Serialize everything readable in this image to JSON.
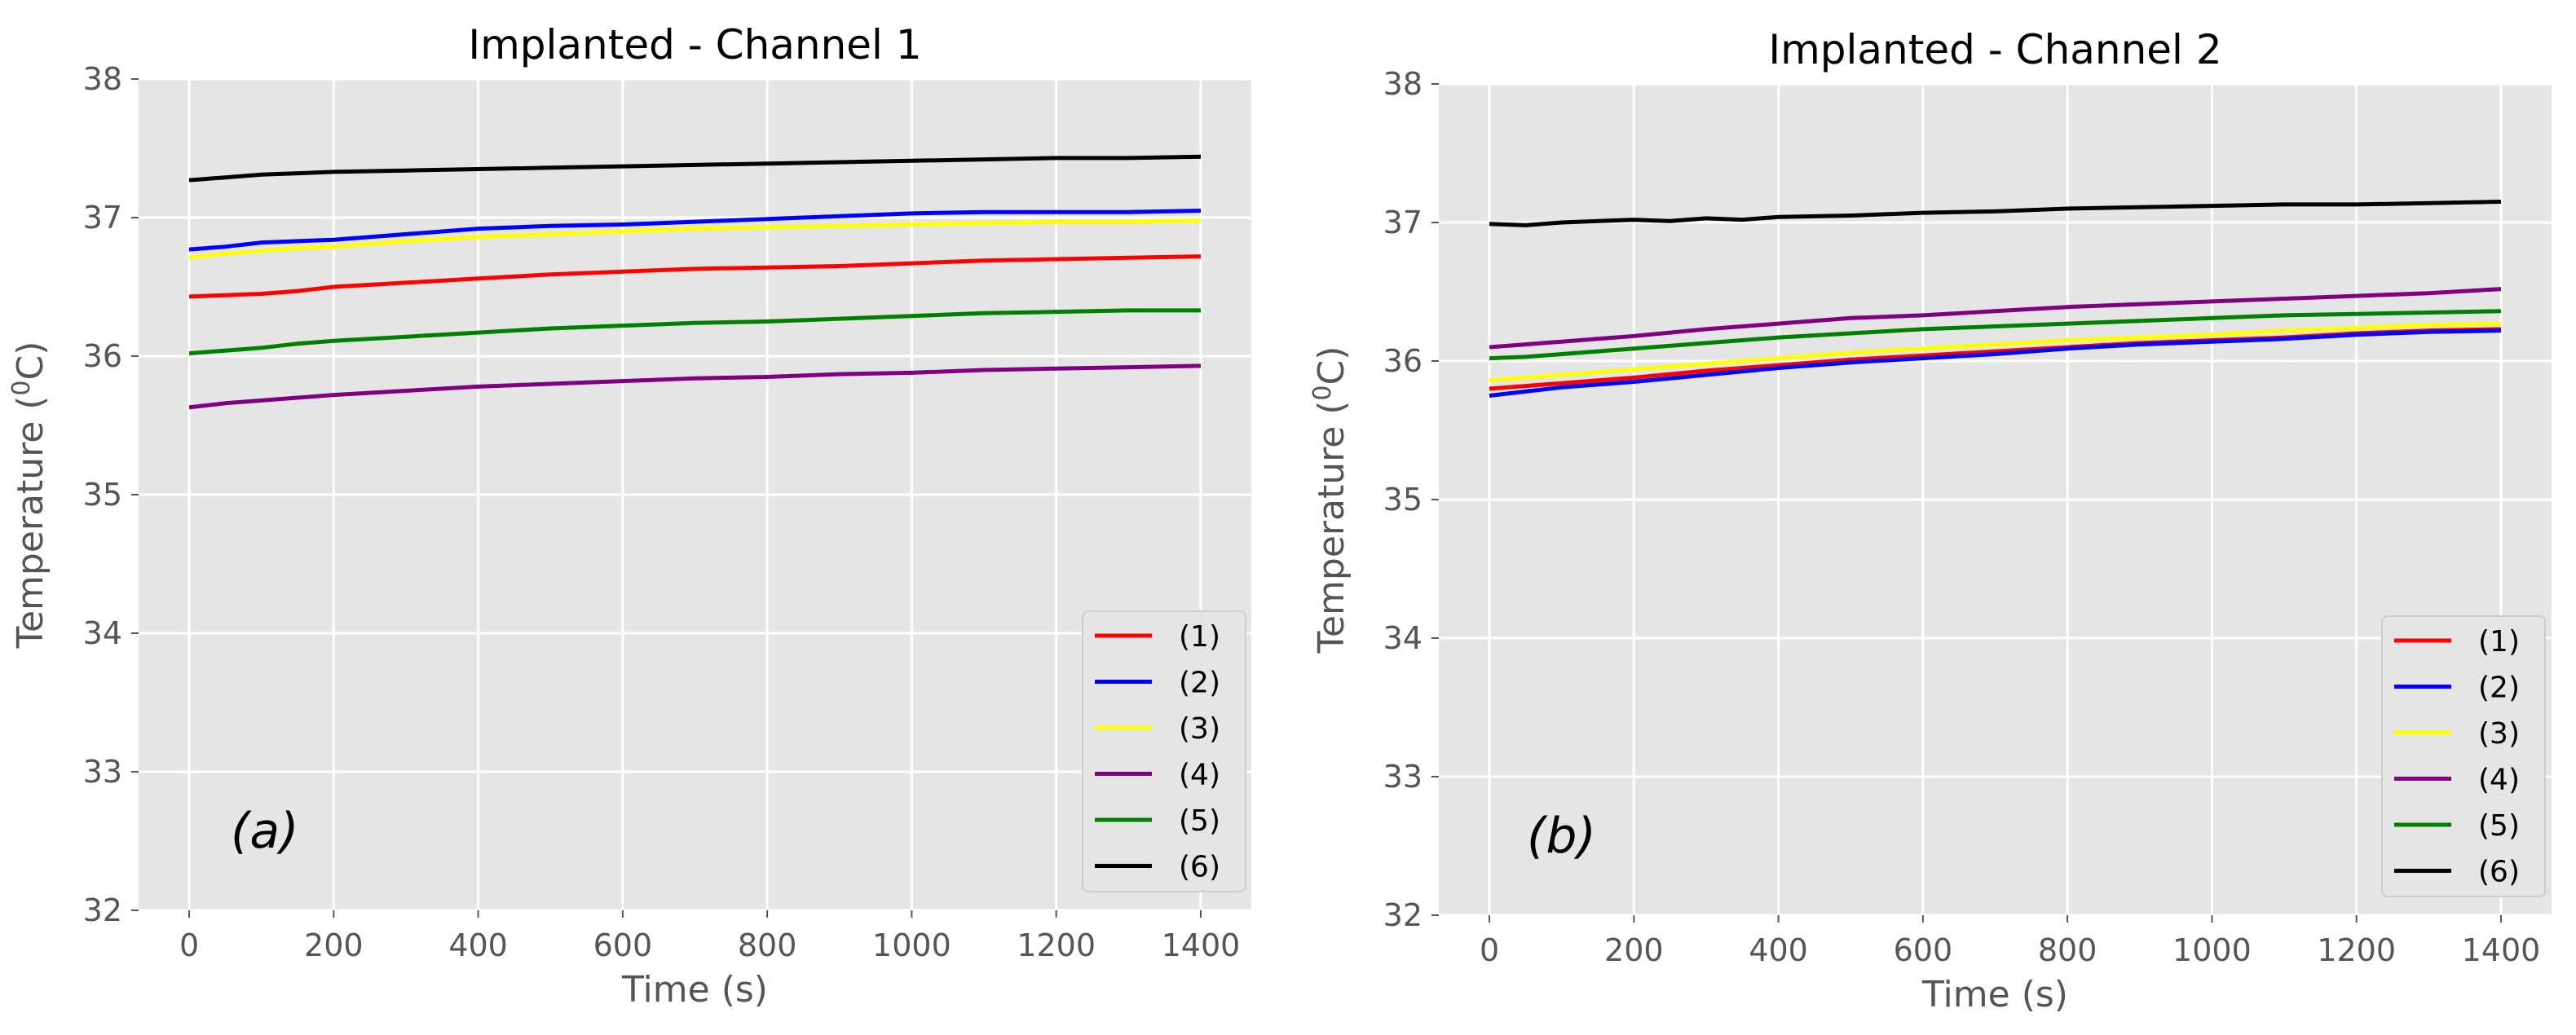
{
  "chart_data": [
    {
      "type": "line",
      "title": "Implanted - Channel 1",
      "xlabel": "Time (s)",
      "ylabel_prefix": "Temperature (",
      "ylabel_sup": "0",
      "ylabel_suffix": "C)",
      "xlim": [
        -70,
        1470
      ],
      "ylim": [
        32,
        38
      ],
      "xticks": [
        0,
        200,
        400,
        600,
        800,
        1000,
        1200,
        1400
      ],
      "yticks": [
        32,
        33,
        34,
        35,
        36,
        37,
        38
      ],
      "grid": true,
      "legend_position": "lower-right",
      "panel_label": "(a)",
      "series": [
        {
          "name": "(1)",
          "color": "#ff0000",
          "x": [
            0,
            50,
            100,
            150,
            200,
            300,
            400,
            500,
            600,
            700,
            800,
            900,
            1000,
            1100,
            1200,
            1300,
            1400
          ],
          "y": [
            36.43,
            36.44,
            36.45,
            36.47,
            36.5,
            36.53,
            36.56,
            36.59,
            36.61,
            36.63,
            36.64,
            36.65,
            36.67,
            36.69,
            36.7,
            36.71,
            36.72
          ]
        },
        {
          "name": "(2)",
          "color": "#0000ff",
          "x": [
            0,
            50,
            100,
            150,
            200,
            300,
            400,
            500,
            600,
            700,
            800,
            900,
            1000,
            1100,
            1200,
            1300,
            1400
          ],
          "y": [
            36.77,
            36.79,
            36.82,
            36.83,
            36.84,
            36.88,
            36.92,
            36.94,
            36.95,
            36.97,
            36.99,
            37.01,
            37.03,
            37.04,
            37.04,
            37.04,
            37.05
          ]
        },
        {
          "name": "(3)",
          "color": "#ffff00",
          "x": [
            0,
            50,
            100,
            150,
            200,
            300,
            400,
            500,
            600,
            700,
            800,
            900,
            1000,
            1100,
            1200,
            1300,
            1400
          ],
          "y": [
            36.71,
            36.74,
            36.76,
            36.78,
            36.79,
            36.83,
            36.86,
            36.88,
            36.9,
            36.92,
            36.93,
            36.94,
            36.95,
            36.96,
            36.97,
            36.97,
            36.98
          ]
        },
        {
          "name": "(4)",
          "color": "#800080",
          "x": [
            0,
            50,
            100,
            150,
            200,
            300,
            400,
            500,
            600,
            700,
            800,
            900,
            1000,
            1100,
            1200,
            1300,
            1400
          ],
          "y": [
            35.63,
            35.66,
            35.68,
            35.7,
            35.72,
            35.75,
            35.78,
            35.8,
            35.82,
            35.84,
            35.85,
            35.87,
            35.88,
            35.9,
            35.91,
            35.92,
            35.93
          ]
        },
        {
          "name": "(5)",
          "color": "#008000",
          "x": [
            0,
            50,
            100,
            150,
            200,
            300,
            400,
            500,
            600,
            700,
            800,
            900,
            1000,
            1100,
            1200,
            1300,
            1400
          ],
          "y": [
            36.02,
            36.04,
            36.06,
            36.09,
            36.11,
            36.14,
            36.17,
            36.2,
            36.22,
            36.24,
            36.25,
            36.27,
            36.29,
            36.31,
            36.32,
            36.33,
            36.33
          ]
        },
        {
          "name": "(6)",
          "color": "#000000",
          "x": [
            0,
            50,
            100,
            150,
            200,
            300,
            400,
            500,
            600,
            700,
            800,
            900,
            1000,
            1100,
            1200,
            1300,
            1400
          ],
          "y": [
            37.27,
            37.29,
            37.31,
            37.32,
            37.33,
            37.34,
            37.35,
            37.36,
            37.37,
            37.38,
            37.39,
            37.4,
            37.41,
            37.42,
            37.43,
            37.43,
            37.44
          ]
        }
      ]
    },
    {
      "type": "line",
      "title": "Implanted - Channel 2",
      "xlabel": "Time (s)",
      "ylabel_prefix": "Temperature (",
      "ylabel_sup": "0",
      "ylabel_suffix": "C)",
      "xlim": [
        -70,
        1470
      ],
      "ylim": [
        32,
        38
      ],
      "xticks": [
        0,
        200,
        400,
        600,
        800,
        1000,
        1200,
        1400
      ],
      "yticks": [
        32,
        33,
        34,
        35,
        36,
        37,
        38
      ],
      "grid": true,
      "legend_position": "lower-right",
      "panel_label": "(b)",
      "series": [
        {
          "name": "(1)",
          "color": "#ff0000",
          "x": [
            0,
            50,
            100,
            150,
            200,
            300,
            400,
            500,
            600,
            700,
            800,
            900,
            1000,
            1100,
            1200,
            1300,
            1400
          ],
          "y": [
            35.8,
            35.82,
            35.84,
            35.86,
            35.88,
            35.93,
            35.97,
            36.01,
            36.04,
            36.07,
            36.1,
            36.13,
            36.15,
            36.17,
            36.2,
            36.22,
            36.23
          ]
        },
        {
          "name": "(2)",
          "color": "#0000ff",
          "x": [
            0,
            50,
            100,
            150,
            200,
            300,
            400,
            500,
            600,
            700,
            800,
            900,
            1000,
            1100,
            1200,
            1300,
            1400
          ],
          "y": [
            35.75,
            35.78,
            35.81,
            35.83,
            35.85,
            35.9,
            35.95,
            35.99,
            36.02,
            36.05,
            36.09,
            36.12,
            36.14,
            36.16,
            36.19,
            36.21,
            36.22
          ]
        },
        {
          "name": "(3)",
          "color": "#ffff00",
          "x": [
            0,
            50,
            100,
            150,
            200,
            300,
            400,
            500,
            600,
            700,
            800,
            900,
            1000,
            1100,
            1200,
            1300,
            1400
          ],
          "y": [
            35.86,
            35.88,
            35.9,
            35.92,
            35.94,
            35.98,
            36.02,
            36.06,
            36.09,
            36.12,
            36.15,
            36.17,
            36.19,
            36.22,
            36.24,
            36.26,
            36.27
          ]
        },
        {
          "name": "(4)",
          "color": "#800080",
          "x": [
            0,
            50,
            100,
            150,
            200,
            300,
            400,
            500,
            600,
            700,
            800,
            900,
            1000,
            1100,
            1200,
            1300,
            1400
          ],
          "y": [
            36.1,
            36.12,
            36.14,
            36.16,
            36.18,
            36.23,
            36.27,
            36.31,
            36.33,
            36.36,
            36.39,
            36.41,
            36.43,
            36.45,
            36.47,
            36.49,
            36.52
          ]
        },
        {
          "name": "(5)",
          "color": "#008000",
          "x": [
            0,
            50,
            100,
            150,
            200,
            300,
            400,
            500,
            600,
            700,
            800,
            900,
            1000,
            1100,
            1200,
            1300,
            1400
          ],
          "y": [
            36.02,
            36.03,
            36.05,
            36.07,
            36.09,
            36.13,
            36.17,
            36.2,
            36.23,
            36.25,
            36.27,
            36.29,
            36.31,
            36.33,
            36.34,
            36.35,
            36.36
          ]
        },
        {
          "name": "(6)",
          "color": "#000000",
          "x": [
            0,
            50,
            100,
            150,
            200,
            250,
            300,
            350,
            400,
            500,
            600,
            700,
            800,
            900,
            1000,
            1100,
            1200,
            1300,
            1400
          ],
          "y": [
            36.99,
            36.98,
            37.0,
            37.01,
            37.02,
            37.01,
            37.03,
            37.02,
            37.04,
            37.05,
            37.07,
            37.08,
            37.1,
            37.11,
            37.12,
            37.13,
            37.13,
            37.14,
            37.15
          ]
        }
      ]
    }
  ]
}
